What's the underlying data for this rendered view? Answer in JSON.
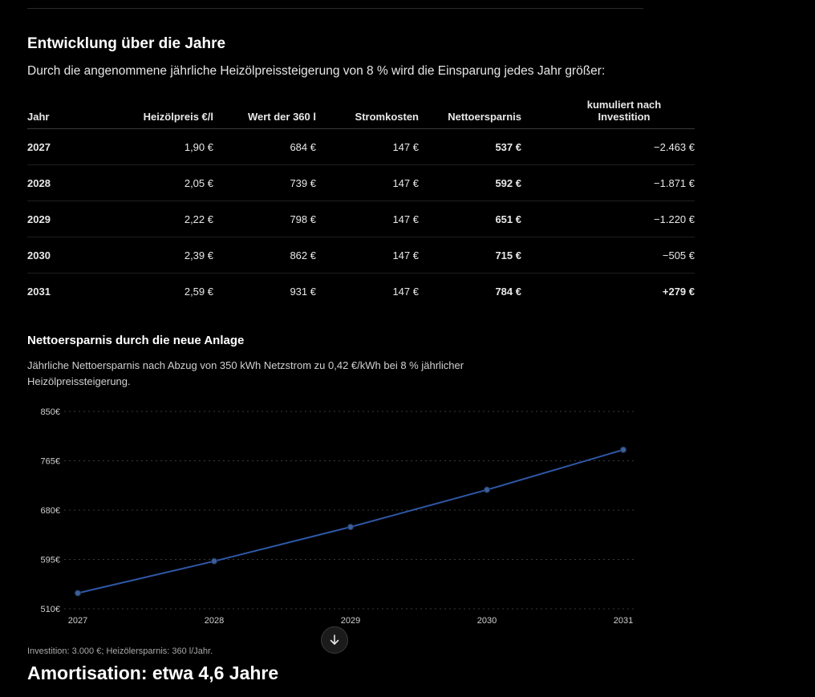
{
  "section": {
    "title": "Entwicklung über die Jahre",
    "intro": "Durch die angenommene jährliche Heizölpreissteigerung von 8 % wird die Einsparung jedes Jahr größer:"
  },
  "table": {
    "headers": [
      "Jahr",
      "Heizölpreis €/l",
      "Wert der 360 l",
      "Stromkosten",
      "Nettoersparnis",
      "kumuliert nach Investition"
    ],
    "rows": [
      [
        "2027",
        "1,90 €",
        "684 €",
        "147 €",
        "537 €",
        "−2.463 €"
      ],
      [
        "2028",
        "2,05 €",
        "739 €",
        "147 €",
        "592 €",
        "−1.871 €"
      ],
      [
        "2029",
        "2,22 €",
        "798 €",
        "147 €",
        "651 €",
        "−1.220 €"
      ],
      [
        "2030",
        "2,39 €",
        "862 €",
        "147 €",
        "715 €",
        "−505 €"
      ],
      [
        "2031",
        "2,59 €",
        "931 €",
        "147 €",
        "784 €",
        "+279 €"
      ]
    ]
  },
  "chart_section": {
    "title": "Nettoersparnis durch die neue Anlage",
    "description": "Jährliche Nettoersparnis nach Abzug von 350 kWh Netzstrom zu 0,42 €/kWh bei 8 % jährlicher Heizölpreissteigerung."
  },
  "chart_data": {
    "type": "line",
    "x": [
      "2027",
      "2028",
      "2029",
      "2030",
      "2031"
    ],
    "series": [
      {
        "values": [
          537,
          592,
          651,
          715,
          784
        ]
      }
    ],
    "ylim": [
      510,
      850
    ],
    "yticks": [
      510,
      595,
      680,
      765,
      850
    ],
    "ytick_labels": [
      "510€",
      "595€",
      "680€",
      "765€",
      "850€"
    ],
    "grid": true,
    "line_color": "#2f57a6",
    "marker_color": "#3b5f9a"
  },
  "footnote": "Investition: 3.000 €; Heizölersparnis: 360 l/Jahr.",
  "amortisation": "Amortisation: etwa 4,6 Jahre",
  "icons": {
    "scroll_button": "arrow-down-icon"
  }
}
